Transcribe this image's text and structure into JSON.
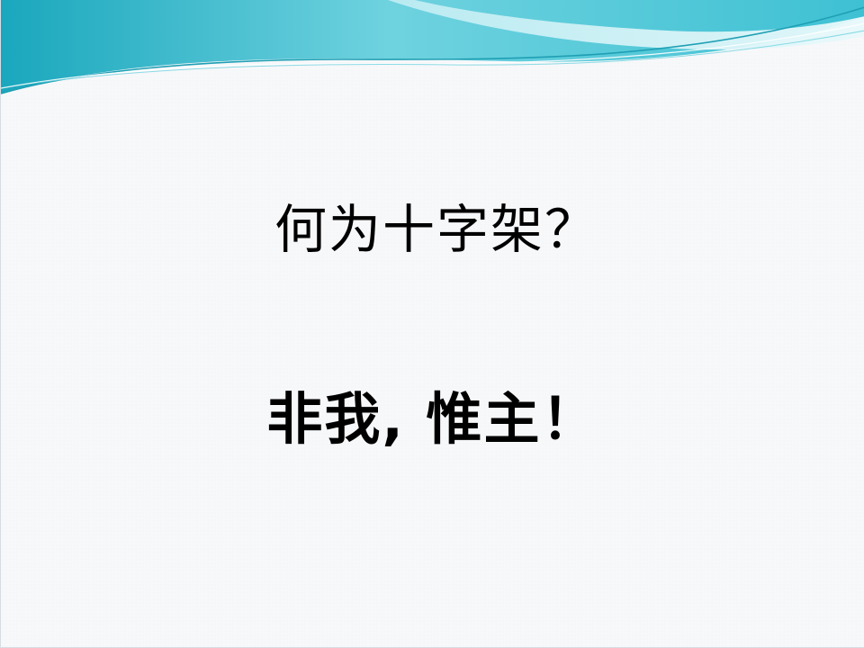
{
  "slide": {
    "line_1": "何为十字架？",
    "line_2": "非我, 惟主！"
  },
  "decoration": {
    "header_wave_icon": "teal-wave-banner",
    "colors": {
      "background": "#f7f8fa",
      "wave_dark": "#2fb4c8",
      "wave_mid": "#8fdce6",
      "wave_light": "#d6f3f6",
      "text": "#000000"
    }
  }
}
